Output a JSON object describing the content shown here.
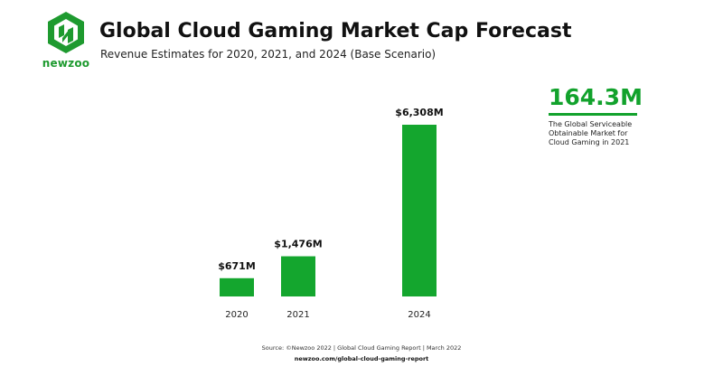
{
  "brand": {
    "name": "newzoo",
    "color": "#1e9a2f"
  },
  "header": {
    "title": "Global Cloud Gaming Market Cap Forecast",
    "subtitle": "Revenue Estimates for 2020, 2021, and 2024 (Base Scenario)"
  },
  "chart_data": {
    "type": "bar",
    "categories": [
      "2020",
      "2021",
      "2024"
    ],
    "values": [
      671,
      1476,
      6308
    ],
    "value_labels": [
      "$671M",
      "$1,476M",
      "$6,308M"
    ],
    "xlabel": "",
    "ylabel": "",
    "grid": false,
    "legend": "none",
    "bar_color": "#14a62e"
  },
  "callout": {
    "value": "164.3M",
    "description": "The Global Serviceable Obtainable Market for Cloud Gaming in 2021",
    "color": "#12a22c"
  },
  "footer": {
    "source": "Source: ©Newzoo 2022 | Global Cloud Gaming Report | March 2022",
    "url": "newzoo.com/global-cloud-gaming-report"
  }
}
